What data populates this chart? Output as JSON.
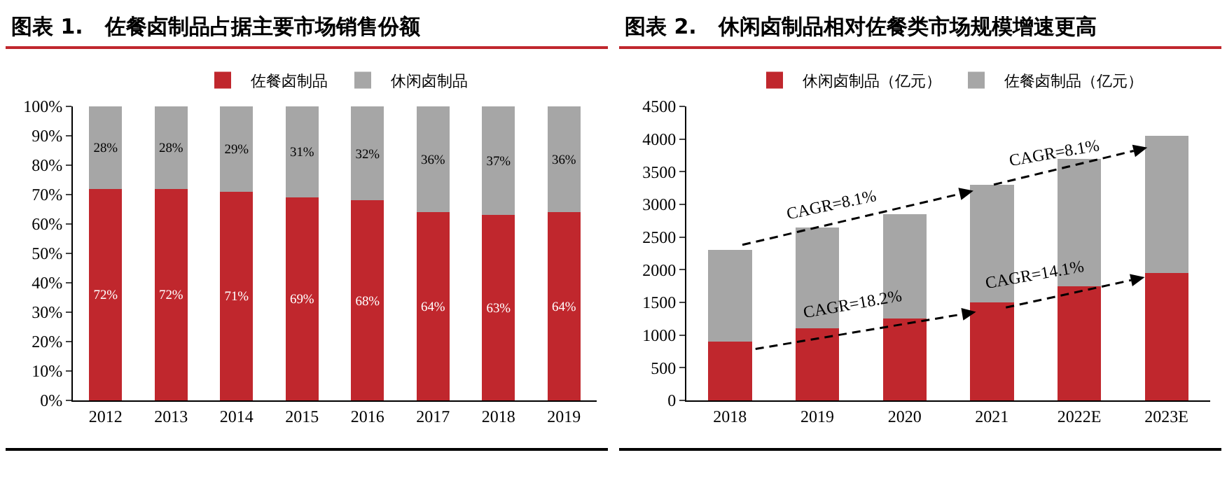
{
  "chart_data": [
    {
      "type": "bar",
      "title": "图表 1.   佐餐卤制品占据主要市场销售份额",
      "stacked": true,
      "legend": "top",
      "categories": [
        "2012",
        "2013",
        "2014",
        "2015",
        "2016",
        "2017",
        "2018",
        "2019"
      ],
      "series": [
        {
          "name": "佐餐卤制品",
          "color": "#c0272d",
          "values": [
            72,
            72,
            71,
            69,
            68,
            64,
            63,
            64
          ],
          "value_labels": [
            "72%",
            "72%",
            "71%",
            "69%",
            "68%",
            "64%",
            "63%",
            "64%"
          ]
        },
        {
          "name": "休闲卤制品",
          "color": "#a6a6a6",
          "values": [
            28,
            28,
            29,
            31,
            32,
            36,
            37,
            36
          ],
          "value_labels": [
            "28%",
            "28%",
            "29%",
            "31%",
            "32%",
            "36%",
            "37%",
            "36%"
          ]
        }
      ],
      "ylim": [
        0,
        100
      ],
      "yticks": [
        {
          "value": 0,
          "label": "0%"
        },
        {
          "value": 10,
          "label": "10%"
        },
        {
          "value": 20,
          "label": "20%"
        },
        {
          "value": 30,
          "label": "30%"
        },
        {
          "value": 40,
          "label": "40%"
        },
        {
          "value": 50,
          "label": "50%"
        },
        {
          "value": 60,
          "label": "60%"
        },
        {
          "value": 70,
          "label": "70%"
        },
        {
          "value": 80,
          "label": "80%"
        },
        {
          "value": 90,
          "label": "90%"
        },
        {
          "value": 100,
          "label": "100%"
        }
      ],
      "grid": false
    },
    {
      "type": "bar",
      "title": "图表 2.   休闲卤制品相对佐餐类市场规模增速更高",
      "stacked": true,
      "legend": "top",
      "categories": [
        "2018",
        "2019",
        "2020",
        "2021",
        "2022E",
        "2023E"
      ],
      "series": [
        {
          "name": "休闲卤制品（亿元）",
          "color": "#c0272d",
          "values": [
            900,
            1100,
            1250,
            1500,
            1750,
            1950
          ]
        },
        {
          "name": "佐餐卤制品（亿元）",
          "color": "#a6a6a6",
          "values": [
            1400,
            1550,
            1600,
            1800,
            1950,
            2100
          ]
        }
      ],
      "annotations": [
        "CAGR=18.2%",
        "CAGR=14.1%",
        "CAGR=8.1%",
        "CAGR=8.1%"
      ],
      "ylim": [
        0,
        4500
      ],
      "yticks": [
        0,
        500,
        1000,
        1500,
        2000,
        2500,
        3000,
        3500,
        4000,
        4500
      ],
      "grid": false
    }
  ]
}
